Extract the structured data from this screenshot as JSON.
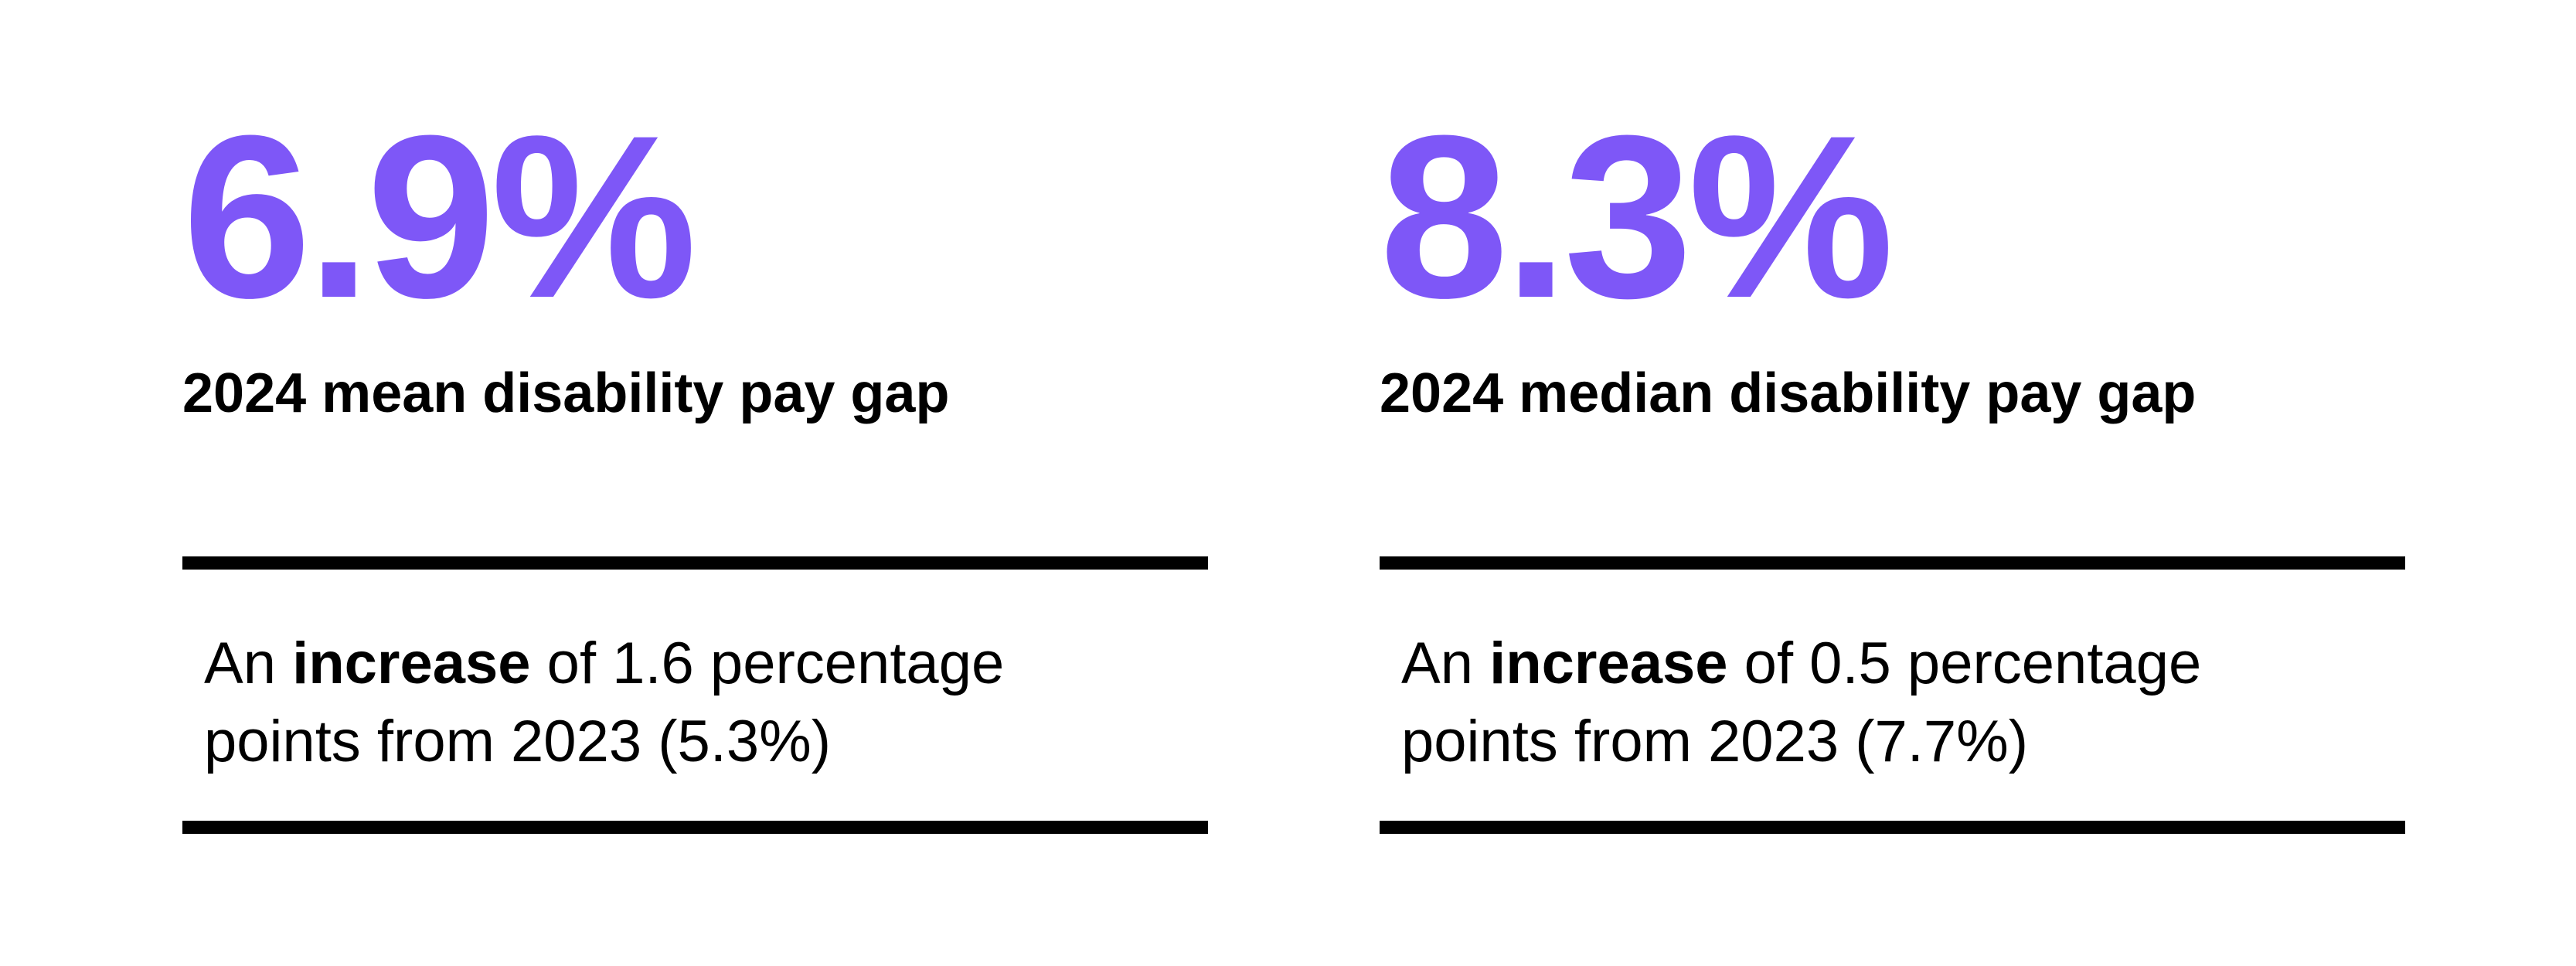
{
  "stats": [
    {
      "value": "6.9%",
      "label": "2024 mean disability pay gap",
      "change": {
        "prefix": "An",
        "emphasis": "increase",
        "middle": "of 1.6 percentage",
        "line2": "points from 2023 (5.3%)"
      }
    },
    {
      "value": "8.3%",
      "label": "2024 median disability pay gap",
      "change": {
        "prefix": "An",
        "emphasis": "increase",
        "middle": "of 0.5 percentage",
        "line2": "points from 2023 (7.7%)"
      }
    }
  ],
  "colors": {
    "accent": "#7e57f7",
    "text": "#000000",
    "rule": "#000000",
    "background": "#ffffff"
  }
}
